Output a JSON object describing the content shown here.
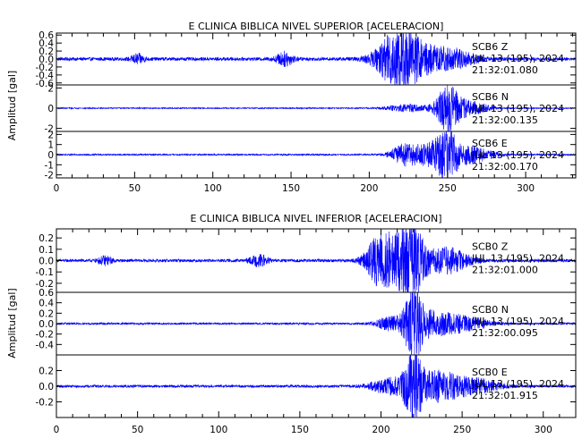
{
  "chart_data": [
    {
      "type": "line",
      "title": "E CLINICA BIBLICA NIVEL SUPERIOR [ACELERACION]",
      "ylabel": "Amplitud [gal]",
      "xlim": [
        0,
        332
      ],
      "xticks": [
        0,
        50,
        100,
        150,
        200,
        250,
        300
      ],
      "color": "#0000ff",
      "series": [
        {
          "name": "SCB6 Z",
          "station": "SCB6 Z",
          "date": "JUL 13 (195), 2024",
          "time": "21:32:01.080",
          "ylim": [
            -0.65,
            0.65
          ],
          "yticks": [
            0.6,
            0.4,
            0.2,
            0.0,
            -0.2,
            -0.4,
            -0.6
          ],
          "ytick_labels": [
            "0.6",
            "0.4",
            "0.2",
            "0.0",
            "-0.2",
            "-0.4",
            "-0.6"
          ],
          "noise": 0.045,
          "bursts": [
            {
              "x": 52,
              "w": 3,
              "a": 0.12
            },
            {
              "x": 146,
              "w": 4,
              "a": 0.18
            },
            {
              "x": 218,
              "w": 9,
              "a": 0.6
            },
            {
              "x": 230,
              "w": 14,
              "a": 0.35
            },
            {
              "x": 255,
              "w": 10,
              "a": 0.2
            }
          ]
        },
        {
          "name": "SCB6 N",
          "station": "SCB6 N",
          "date": "JUL 13 (195), 2024",
          "time": "21:32:00.135",
          "ylim": [
            -2.3,
            2.3
          ],
          "yticks": [
            2,
            0,
            -2
          ],
          "ytick_labels": [
            "2",
            "0",
            "-2"
          ],
          "noise": 0.06,
          "bursts": [
            {
              "x": 225,
              "w": 10,
              "a": 0.4
            },
            {
              "x": 250,
              "w": 5,
              "a": 2.1
            },
            {
              "x": 262,
              "w": 10,
              "a": 0.8
            }
          ]
        },
        {
          "name": "SCB6 E",
          "station": "SCB6 E",
          "date": "JUL 13 (195), 2024",
          "time": "21:32:00.170",
          "ylim": [
            -2.3,
            2.3
          ],
          "yticks": [
            2,
            1,
            0,
            -1,
            -2
          ],
          "ytick_labels": [
            "2",
            "1",
            "0",
            "-1",
            "-2"
          ],
          "noise": 0.08,
          "bursts": [
            {
              "x": 222,
              "w": 6,
              "a": 1.0
            },
            {
              "x": 238,
              "w": 8,
              "a": 1.1
            },
            {
              "x": 250,
              "w": 5,
              "a": 2.2
            },
            {
              "x": 265,
              "w": 10,
              "a": 0.9
            }
          ]
        }
      ]
    },
    {
      "type": "line",
      "title": "E CLINICA BIBLICA NIVEL INFERIOR [ACELERACION]",
      "ylabel": "Amplitud [gal]",
      "xlim": [
        0,
        320
      ],
      "xticks": [
        0,
        50,
        100,
        150,
        200,
        250,
        300
      ],
      "color": "#0000ff",
      "series": [
        {
          "name": "SCB0 Z",
          "station": "SCB0 Z",
          "date": "JUL 13 (195), 2024",
          "time": "21:32:01.000",
          "ylim": [
            -0.28,
            0.28
          ],
          "yticks": [
            0.2,
            0.1,
            0.0,
            -0.1,
            -0.2
          ],
          "ytick_labels": [
            "0.2",
            "0.1",
            "0.0",
            "-0.1",
            "-0.2"
          ],
          "noise": 0.014,
          "bursts": [
            {
              "x": 30,
              "w": 3,
              "a": 0.04
            },
            {
              "x": 125,
              "w": 4,
              "a": 0.05
            },
            {
              "x": 199,
              "w": 6,
              "a": 0.22
            },
            {
              "x": 212,
              "w": 7,
              "a": 0.2
            },
            {
              "x": 220,
              "w": 5,
              "a": 0.27
            },
            {
              "x": 240,
              "w": 10,
              "a": 0.12
            }
          ]
        },
        {
          "name": "SCB0 N",
          "station": "SCB0 N",
          "date": "JUL 13 (195), 2024",
          "time": "21:32:00.095",
          "ylim": [
            -0.6,
            0.6
          ],
          "yticks": [
            0.6,
            0.4,
            0.2,
            0.0,
            -0.2,
            -0.4
          ],
          "ytick_labels": [
            "0.6",
            "0.4",
            "0.2",
            "0.0",
            "-0.2",
            "-0.4"
          ],
          "noise": 0.02,
          "bursts": [
            {
              "x": 205,
              "w": 6,
              "a": 0.12
            },
            {
              "x": 220,
              "w": 4,
              "a": 0.6
            },
            {
              "x": 232,
              "w": 12,
              "a": 0.25
            },
            {
              "x": 255,
              "w": 10,
              "a": 0.1
            }
          ]
        },
        {
          "name": "SCB0 E",
          "station": "SCB0 E",
          "date": "JUL 13 (195), 2024",
          "time": "21:32:01.915",
          "ylim": [
            -0.4,
            0.4
          ],
          "yticks": [
            0.2,
            0.0,
            -0.2
          ],
          "ytick_labels": [
            "0.2",
            "0.0",
            "-0.2"
          ],
          "noise": 0.018,
          "bursts": [
            {
              "x": 205,
              "w": 8,
              "a": 0.1
            },
            {
              "x": 220,
              "w": 4,
              "a": 0.4
            },
            {
              "x": 235,
              "w": 12,
              "a": 0.2
            },
            {
              "x": 260,
              "w": 10,
              "a": 0.08
            }
          ]
        }
      ]
    }
  ]
}
